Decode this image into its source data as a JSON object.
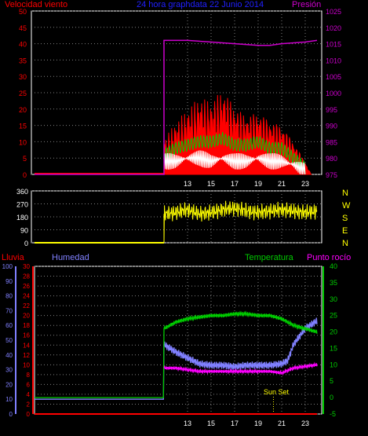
{
  "header": {
    "wind_title": "Velocidad viento",
    "main_title": "24 hora graphdata  22 Junio 2014",
    "pressure_title": "Presión"
  },
  "colors": {
    "wind": "#ff0000",
    "gust": "#00cc00",
    "avg": "#ffffff",
    "pressure": "#cc00cc",
    "dir": "#ffff00",
    "rain": "#ff0000",
    "humidity": "#8080ff",
    "temp": "#00cc00",
    "dew": "#ff00ff",
    "title": "#2020ff",
    "axis": "#ffffff",
    "grid": "#808080"
  },
  "chart_data": [
    {
      "type": "line",
      "name": "wind_pressure",
      "x_ticks": [
        "13",
        "15",
        "17",
        "19",
        "21",
        "23"
      ],
      "x_tick_hours": [
        13,
        15,
        17,
        19,
        21,
        23
      ],
      "x_range_hours": [
        0,
        24
      ],
      "left_axis": {
        "label": "Velocidad viento",
        "ticks": [
          "0",
          "5",
          "10",
          "15",
          "20",
          "25",
          "30",
          "35",
          "40",
          "45",
          "50"
        ],
        "ylim": [
          0,
          50
        ]
      },
      "right_axis": {
        "label": "Presión",
        "ticks": [
          "975",
          "980",
          "985",
          "990",
          "995",
          "1000",
          "1005",
          "1010",
          "1015",
          "1020",
          "1025"
        ],
        "ylim": [
          975,
          1025
        ]
      },
      "series": [
        {
          "name": "wind_speed",
          "color": "#ff0000",
          "x": [
            0,
            11,
            11,
            12,
            13,
            14,
            15,
            16,
            17,
            18,
            19,
            20,
            21,
            22,
            23,
            23.5,
            24
          ],
          "y": [
            0,
            0,
            8,
            12,
            15,
            18,
            17,
            20,
            16,
            14,
            15,
            13,
            12,
            8,
            3,
            0,
            0
          ]
        },
        {
          "name": "wind_gust",
          "color": "#00cc00",
          "x": [
            11,
            12,
            13,
            14,
            15,
            16,
            17,
            18,
            19,
            20,
            21,
            22,
            23
          ],
          "y": [
            6,
            8,
            9,
            10,
            10,
            11,
            9,
            9,
            10,
            8,
            8,
            5,
            2
          ]
        },
        {
          "name": "wind_avg",
          "color": "#ffffff",
          "x": [
            11,
            12,
            13,
            14,
            15,
            16,
            17,
            18,
            19,
            20,
            21,
            22,
            23
          ],
          "y": [
            4,
            4,
            5,
            5,
            4,
            5,
            4,
            4,
            5,
            4,
            4,
            3,
            1
          ]
        },
        {
          "name": "pressure",
          "color": "#cc00cc",
          "axis": "right",
          "x": [
            0,
            11,
            11,
            13,
            15,
            17,
            19,
            20,
            21,
            23,
            24
          ],
          "y": [
            975,
            975,
            1016,
            1016,
            1015.5,
            1015,
            1014.5,
            1014.5,
            1015,
            1015.5,
            1016
          ]
        }
      ]
    },
    {
      "type": "scatter",
      "name": "wind_direction",
      "x_ticks": [
        "13",
        "15",
        "17",
        "19",
        "21",
        "23"
      ],
      "x_range_hours": [
        0,
        24
      ],
      "ylim": [
        0,
        360
      ],
      "y_ticks": [
        "0",
        "90",
        "180",
        "270",
        "360"
      ],
      "compass": [
        "N",
        "W",
        "S",
        "E",
        "N"
      ],
      "series": [
        {
          "name": "direction",
          "color": "#ffff00",
          "x": [
            0,
            11,
            11,
            12,
            13,
            14,
            15,
            16,
            17,
            18,
            19,
            20,
            21,
            22,
            23,
            24
          ],
          "y": [
            0,
            0,
            200,
            210,
            230,
            200,
            210,
            230,
            240,
            220,
            210,
            220,
            230,
            220,
            210,
            220
          ]
        }
      ]
    },
    {
      "type": "line",
      "name": "climate",
      "labels": {
        "rain": "Lluvia",
        "humidity": "Humedad",
        "temperature": "Temperatura",
        "dew": "Punto rocío",
        "sunset": "Sun Set"
      },
      "x_ticks": [
        "13",
        "15",
        "17",
        "19",
        "21",
        "23"
      ],
      "x_range_hours": [
        0,
        24
      ],
      "axis_humidity": {
        "ticks": [
          "0",
          "10",
          "20",
          "30",
          "40",
          "50",
          "60",
          "70",
          "80",
          "90",
          "100"
        ],
        "ylim": [
          0,
          100
        ]
      },
      "axis_rain": {
        "ticks": [
          "0",
          "2",
          "4",
          "6",
          "8",
          "10",
          "12",
          "14",
          "16",
          "18",
          "20",
          "22",
          "24",
          "26",
          "28",
          "30"
        ],
        "ylim": [
          0,
          30
        ]
      },
      "axis_temp": {
        "ticks": [
          "-5",
          "0",
          "5",
          "10",
          "15",
          "20",
          "25",
          "30",
          "35",
          "40"
        ],
        "ylim": [
          -5,
          40
        ]
      },
      "sunset_hour": 20.3,
      "series": [
        {
          "name": "rain",
          "color": "#ff0000",
          "axis": "rain",
          "x": [
            0,
            24
          ],
          "y": [
            0,
            0
          ]
        },
        {
          "name": "humidity",
          "color": "#8080ff",
          "axis": "humidity",
          "x": [
            0,
            11,
            11,
            12,
            13,
            14,
            15,
            16,
            17,
            18,
            19,
            20,
            21,
            21.5,
            22,
            23,
            24
          ],
          "y": [
            10,
            10,
            47,
            42,
            38,
            34,
            33,
            33,
            32,
            33,
            33,
            33,
            34,
            36,
            47,
            58,
            63
          ]
        },
        {
          "name": "temperature",
          "color": "#00cc00",
          "axis": "temp",
          "x": [
            0,
            11,
            11,
            12,
            13,
            14,
            15,
            16,
            17,
            18,
            19,
            20,
            21,
            22,
            23,
            24
          ],
          "y": [
            0,
            0,
            21,
            23,
            24,
            24.5,
            25,
            25,
            25.5,
            25.5,
            25,
            25,
            24,
            22,
            21,
            20
          ]
        },
        {
          "name": "dew_point",
          "color": "#ff00ff",
          "axis": "temp",
          "x": [
            11,
            12,
            13,
            14,
            15,
            16,
            17,
            18,
            19,
            20,
            21,
            22,
            23,
            24
          ],
          "y": [
            9,
            9,
            8.5,
            8,
            8,
            8,
            8,
            8,
            8,
            8,
            7.5,
            9,
            9.5,
            10
          ]
        }
      ]
    }
  ]
}
